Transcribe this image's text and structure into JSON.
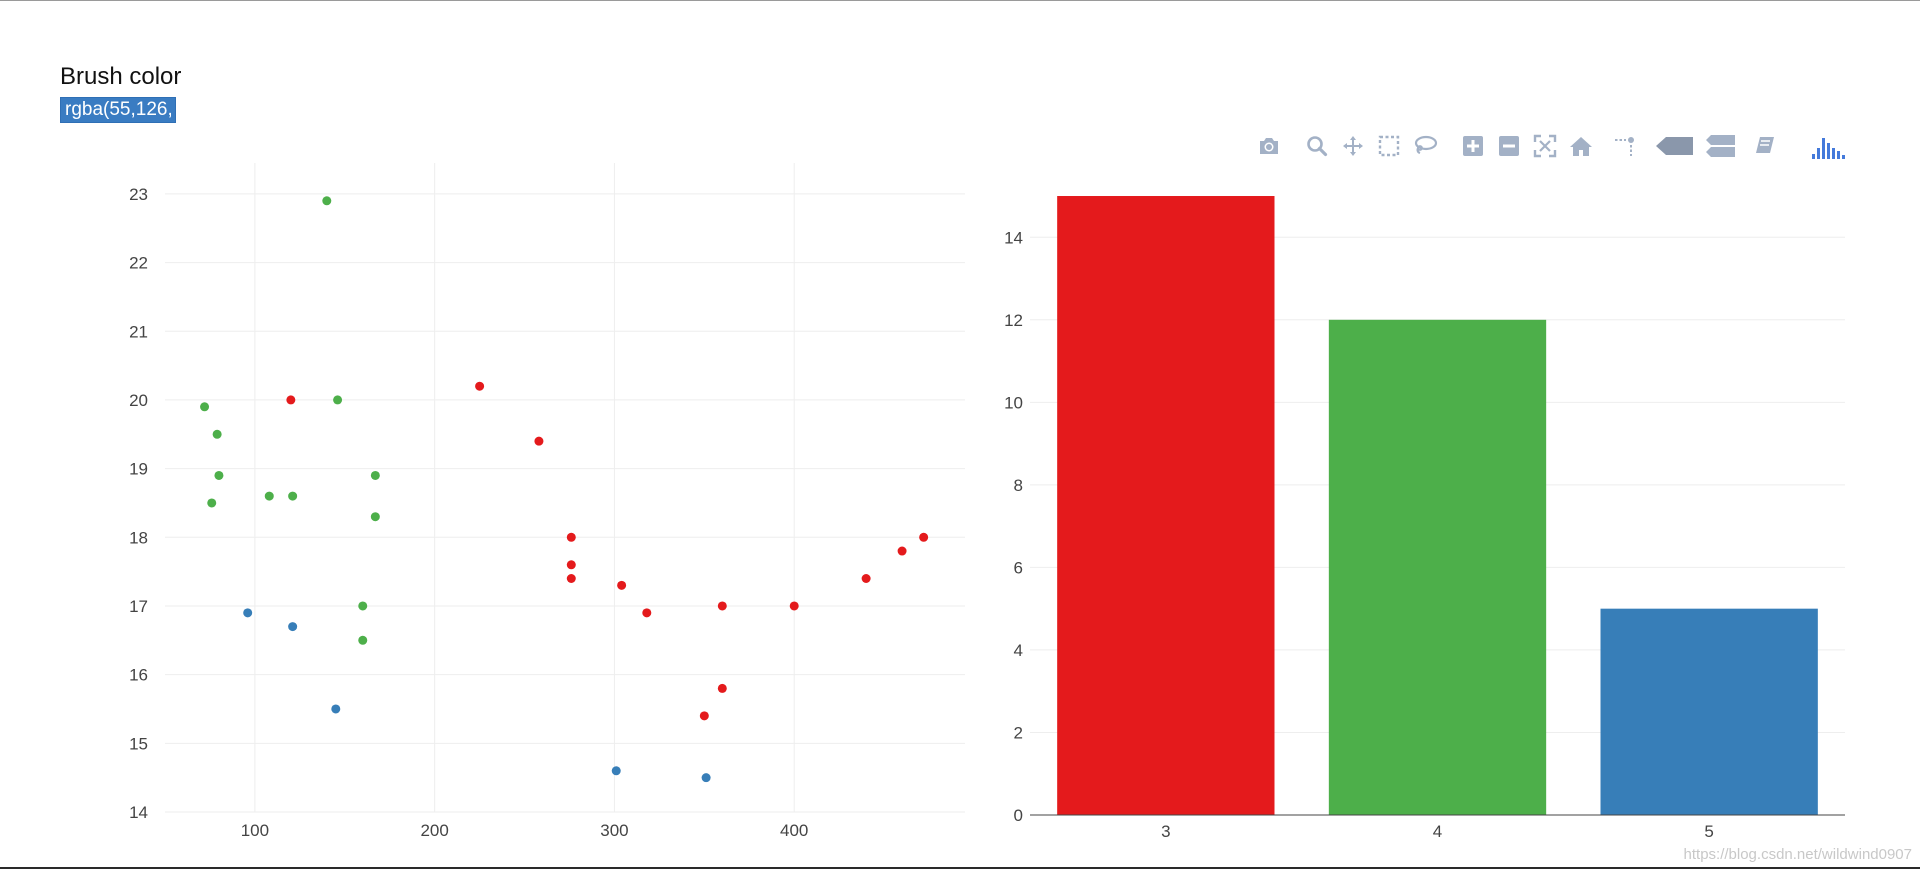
{
  "brush": {
    "label": "Brush color",
    "value": "rgba(55,126,"
  },
  "modebar": {
    "buttons": [
      {
        "name": "camera-icon"
      },
      {
        "name": "zoom-icon"
      },
      {
        "name": "pan-icon"
      },
      {
        "name": "box-select-icon"
      },
      {
        "name": "lasso-select-icon"
      },
      {
        "name": "zoom-in-icon"
      },
      {
        "name": "zoom-out-icon"
      },
      {
        "name": "autoscale-icon"
      },
      {
        "name": "reset-axes-icon"
      },
      {
        "name": "spike-lines-icon"
      },
      {
        "name": "hover-closest-icon"
      },
      {
        "name": "hover-compare-icon"
      },
      {
        "name": "edit-chart-icon"
      },
      {
        "name": "plotly-logo-icon"
      }
    ]
  },
  "watermark": "https://blog.csdn.net/wildwind0907",
  "colors": {
    "red": "#e41a1c",
    "green": "#4daf4a",
    "blue": "#377eb8",
    "grid": "#eeeeee",
    "icon": "#a3b1c6",
    "icon_active": "#447adb"
  },
  "chart_data": [
    {
      "type": "scatter",
      "xlim": [
        50,
        495
      ],
      "ylim": [
        14,
        23.45
      ],
      "xticks": [
        100,
        200,
        300,
        400
      ],
      "yticks": [
        14,
        15,
        16,
        17,
        18,
        19,
        20,
        21,
        22,
        23
      ],
      "grid": true,
      "series": [
        {
          "color": "#e41a1c",
          "points": [
            [
              120,
              20.0
            ],
            [
              225,
              20.2
            ],
            [
              258,
              19.4
            ],
            [
              276,
              18.0
            ],
            [
              276,
              17.6
            ],
            [
              276,
              17.4
            ],
            [
              304,
              17.3
            ],
            [
              318,
              16.9
            ],
            [
              360,
              17.0
            ],
            [
              360,
              15.8
            ],
            [
              350,
              15.4
            ],
            [
              400,
              17.0
            ],
            [
              440,
              17.4
            ],
            [
              460,
              17.8
            ],
            [
              472,
              18.0
            ]
          ]
        },
        {
          "color": "#4daf4a",
          "points": [
            [
              140,
              22.9
            ],
            [
              146,
              20.0
            ],
            [
              72,
              19.9
            ],
            [
              79,
              19.5
            ],
            [
              80,
              18.9
            ],
            [
              167,
              18.9
            ],
            [
              108,
              18.6
            ],
            [
              121,
              18.6
            ],
            [
              76,
              18.5
            ],
            [
              167,
              18.3
            ],
            [
              160,
              17.0
            ],
            [
              160,
              16.5
            ]
          ]
        },
        {
          "color": "#377eb8",
          "points": [
            [
              96,
              16.9
            ],
            [
              121,
              16.7
            ],
            [
              145,
              15.5
            ],
            [
              301,
              14.6
            ],
            [
              351,
              14.5
            ]
          ]
        }
      ]
    },
    {
      "type": "bar",
      "categories": [
        "3",
        "4",
        "5"
      ],
      "values": [
        15,
        12,
        5
      ],
      "colors": [
        "#e41a1c",
        "#4daf4a",
        "#377eb8"
      ],
      "yticks": [
        0,
        2,
        4,
        6,
        8,
        10,
        12,
        14
      ],
      "ylim": [
        0,
        15.8
      ],
      "grid": true
    }
  ]
}
